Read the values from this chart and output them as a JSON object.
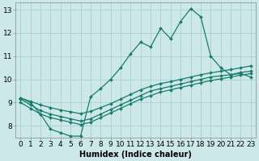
{
  "title": "",
  "xlabel": "Humidex (Indice chaleur)",
  "ylabel": "",
  "bg_color": "#cce8e8",
  "line_color": "#1a7a6e",
  "grid_color": "#aacfcf",
  "xlim": [
    -0.5,
    23.5
  ],
  "ylim": [
    7.5,
    13.3
  ],
  "xticks": [
    0,
    1,
    2,
    3,
    4,
    5,
    6,
    7,
    8,
    9,
    10,
    11,
    12,
    13,
    14,
    15,
    16,
    17,
    18,
    19,
    20,
    21,
    22,
    23
  ],
  "yticks": [
    8,
    9,
    10,
    11,
    12,
    13
  ],
  "line1_x": [
    0,
    1,
    2,
    3,
    4,
    5,
    6,
    7,
    8,
    9,
    10,
    11,
    12,
    13,
    14,
    15,
    16,
    17,
    18,
    19,
    20,
    21,
    22,
    23
  ],
  "line1_y": [
    9.2,
    9.0,
    8.5,
    7.85,
    7.7,
    7.55,
    7.55,
    9.25,
    9.6,
    10.0,
    10.5,
    11.1,
    11.6,
    11.4,
    12.2,
    11.75,
    12.5,
    13.05,
    12.7,
    11.0,
    10.5,
    10.2,
    10.25,
    10.1
  ],
  "line2_x": [
    0,
    1,
    2,
    3,
    4,
    5,
    6,
    7,
    8,
    9,
    10,
    11,
    12,
    13,
    14,
    15,
    16,
    17,
    18,
    19,
    20,
    21,
    22,
    23
  ],
  "line2_y": [
    9.15,
    8.9,
    8.65,
    8.5,
    8.4,
    8.3,
    8.2,
    8.3,
    8.5,
    8.7,
    8.9,
    9.1,
    9.3,
    9.5,
    9.6,
    9.7,
    9.8,
    9.9,
    10.0,
    10.1,
    10.15,
    10.2,
    10.3,
    10.35
  ],
  "line3_x": [
    0,
    1,
    2,
    3,
    4,
    5,
    6,
    7,
    8,
    9,
    10,
    11,
    12,
    13,
    14,
    15,
    16,
    17,
    18,
    19,
    20,
    21,
    22,
    23
  ],
  "line3_y": [
    9.2,
    9.05,
    8.9,
    8.78,
    8.68,
    8.6,
    8.52,
    8.62,
    8.78,
    8.95,
    9.15,
    9.35,
    9.55,
    9.7,
    9.82,
    9.9,
    10.0,
    10.1,
    10.2,
    10.28,
    10.35,
    10.42,
    10.5,
    10.58
  ],
  "line4_x": [
    0,
    1,
    2,
    3,
    4,
    5,
    6,
    7,
    8,
    9,
    10,
    11,
    12,
    13,
    14,
    15,
    16,
    17,
    18,
    19,
    20,
    21,
    22,
    23
  ],
  "line4_y": [
    9.0,
    8.75,
    8.5,
    8.35,
    8.25,
    8.15,
    8.05,
    8.15,
    8.35,
    8.55,
    8.75,
    8.95,
    9.15,
    9.3,
    9.45,
    9.55,
    9.65,
    9.75,
    9.85,
    9.95,
    10.02,
    10.1,
    10.18,
    10.25
  ],
  "marker": "D",
  "markersize": 2.0,
  "linewidth": 0.9,
  "xlabel_fontsize": 7,
  "tick_fontsize": 6.5
}
